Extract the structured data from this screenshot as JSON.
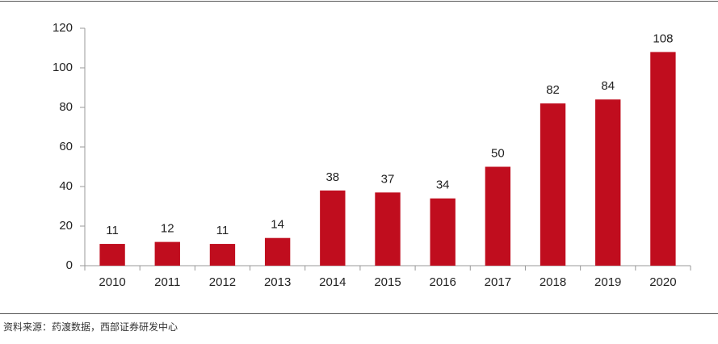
{
  "chart_data": {
    "type": "bar",
    "categories": [
      "2010",
      "2011",
      "2012",
      "2013",
      "2014",
      "2015",
      "2016",
      "2017",
      "2018",
      "2019",
      "2020"
    ],
    "values": [
      11,
      12,
      11,
      14,
      38,
      37,
      34,
      50,
      82,
      84,
      108
    ],
    "color": "#c00d1e",
    "ylim": [
      0,
      120
    ],
    "yticks": [
      0,
      20,
      40,
      60,
      80,
      100,
      120
    ],
    "grid": false,
    "source": "资料来源：药渡数据，西部证券研发中心"
  }
}
